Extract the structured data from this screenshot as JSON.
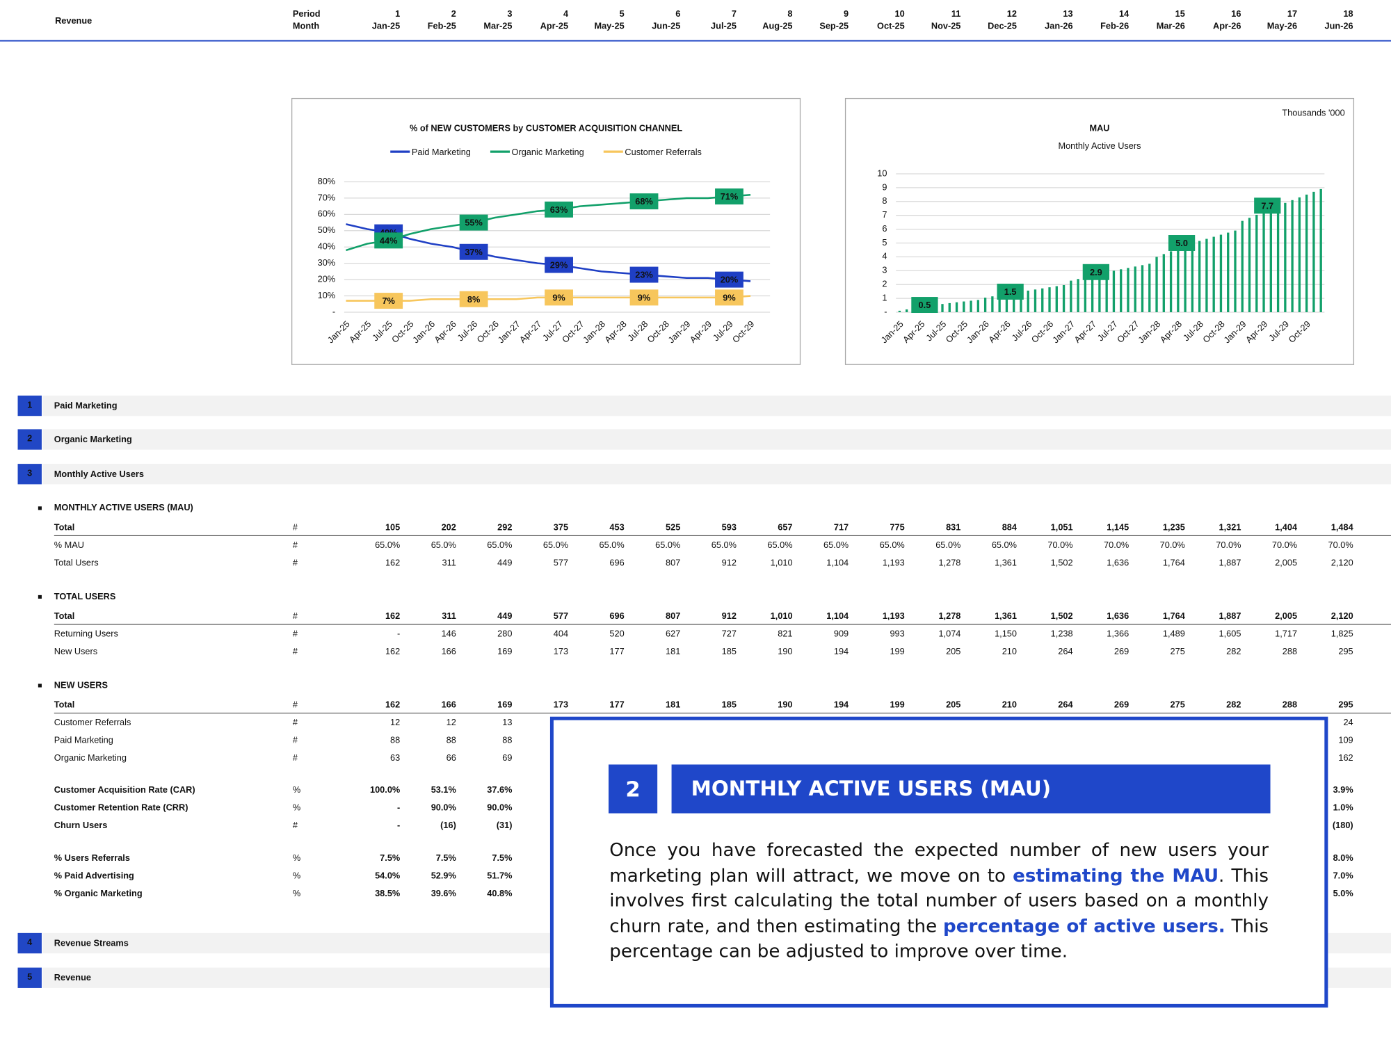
{
  "header": {
    "title": "Revenue",
    "period_label": "Period",
    "month_label": "Month",
    "periods": [
      "1",
      "2",
      "3",
      "4",
      "5",
      "6",
      "7",
      "8",
      "9",
      "10",
      "11",
      "12",
      "13",
      "14",
      "15",
      "16",
      "17",
      "18"
    ],
    "months": [
      "Jan-25",
      "Feb-25",
      "Mar-25",
      "Apr-25",
      "May-25",
      "Jun-25",
      "Jul-25",
      "Aug-25",
      "Sep-25",
      "Oct-25",
      "Nov-25",
      "Dec-25",
      "Jan-26",
      "Feb-26",
      "Mar-26",
      "Apr-26",
      "May-26",
      "Jun-26"
    ]
  },
  "chart_data": [
    {
      "type": "line",
      "title": "% of NEW CUSTOMERS by CUSTOMER ACQUISITION CHANNEL",
      "categories": [
        "Jan-25",
        "Apr-25",
        "Jul-25",
        "Oct-25",
        "Jan-26",
        "Apr-26",
        "Jul-26",
        "Oct-26",
        "Jan-27",
        "Apr-27",
        "Jul-27",
        "Oct-27",
        "Jan-28",
        "Apr-28",
        "Jul-28",
        "Oct-28",
        "Jan-29",
        "Apr-29",
        "Jul-29",
        "Oct-29"
      ],
      "series": [
        {
          "name": "Paid Marketing",
          "color": "#1f3fc4",
          "values": [
            54,
            51,
            49,
            45,
            42,
            40,
            37,
            34,
            32,
            30,
            29,
            27,
            25,
            24,
            23,
            22,
            21,
            21,
            20,
            19
          ],
          "value_labels": [
            null,
            null,
            "49%",
            null,
            null,
            null,
            "37%",
            null,
            null,
            null,
            "29%",
            null,
            null,
            null,
            "23%",
            null,
            null,
            null,
            "20%",
            null
          ]
        },
        {
          "name": "Organic Marketing",
          "color": "#12a06a",
          "values": [
            38,
            42,
            44,
            48,
            51,
            53,
            55,
            58,
            60,
            62,
            63,
            65,
            66,
            67,
            68,
            69,
            70,
            70,
            71,
            72
          ],
          "value_labels": [
            null,
            null,
            "44%",
            null,
            null,
            null,
            "55%",
            null,
            null,
            null,
            "63%",
            null,
            null,
            null,
            "68%",
            null,
            null,
            null,
            "71%",
            null
          ]
        },
        {
          "name": "Customer Referrals",
          "color": "#f7c65c",
          "values": [
            7,
            7,
            7,
            7,
            8,
            8,
            8,
            8,
            8,
            9,
            9,
            9,
            9,
            9,
            9,
            9,
            9,
            9,
            9,
            10
          ],
          "value_labels": [
            null,
            null,
            "7%",
            null,
            null,
            null,
            "8%",
            null,
            null,
            null,
            "9%",
            null,
            null,
            null,
            "9%",
            null,
            null,
            null,
            "9%",
            null
          ]
        }
      ],
      "ylim": [
        0,
        80
      ],
      "yticks": [
        {
          "value": 0,
          "label": "-"
        },
        {
          "value": 10,
          "label": "10%"
        },
        {
          "value": 20,
          "label": "20%"
        },
        {
          "value": 30,
          "label": "30%"
        },
        {
          "value": 40,
          "label": "40%"
        },
        {
          "value": 50,
          "label": "50%"
        },
        {
          "value": 60,
          "label": "60%"
        },
        {
          "value": 70,
          "label": "70%"
        },
        {
          "value": 80,
          "label": "80%"
        }
      ],
      "grid": true,
      "legend": "top"
    },
    {
      "type": "bar",
      "title": "MAU",
      "subtitle": "Monthly Active Users",
      "note": "Thousands '000",
      "categories": [
        "Jan-25",
        null,
        null,
        "Apr-25",
        null,
        null,
        "Jul-25",
        null,
        null,
        "Oct-25",
        null,
        null,
        "Jan-26",
        null,
        null,
        "Apr-26",
        null,
        null,
        "Jul-26",
        null,
        null,
        "Oct-26",
        null,
        null,
        "Jan-27",
        null,
        null,
        "Apr-27",
        null,
        null,
        "Jul-27",
        null,
        null,
        "Oct-27",
        null,
        null,
        "Jan-28",
        null,
        null,
        "Apr-28",
        null,
        null,
        "Jul-28",
        null,
        null,
        "Oct-28",
        null,
        null,
        "Jan-29",
        null,
        null,
        "Apr-29",
        null,
        null,
        "Jul-29",
        null,
        null,
        "Oct-29",
        null,
        null
      ],
      "values": [
        0.105,
        0.202,
        0.292,
        0.375,
        0.453,
        0.525,
        0.593,
        0.657,
        0.717,
        0.775,
        0.831,
        0.884,
        1.051,
        1.145,
        1.235,
        1.321,
        1.404,
        1.484,
        1.56,
        1.64,
        1.72,
        1.8,
        1.88,
        1.96,
        2.28,
        2.4,
        2.52,
        2.64,
        2.76,
        2.9,
        3.0,
        3.1,
        3.2,
        3.3,
        3.4,
        3.5,
        4.0,
        4.2,
        4.4,
        4.6,
        4.8,
        5.0,
        5.15,
        5.3,
        5.45,
        5.6,
        5.75,
        5.9,
        6.6,
        6.82,
        7.04,
        7.26,
        7.48,
        7.7,
        7.9,
        8.1,
        8.3,
        8.5,
        8.7,
        8.9
      ],
      "value_labels": [
        null,
        null,
        null,
        null,
        null,
        "0.5",
        null,
        null,
        null,
        null,
        null,
        null,
        null,
        null,
        null,
        null,
        null,
        "1.5",
        null,
        null,
        null,
        null,
        null,
        null,
        null,
        null,
        null,
        null,
        null,
        "2.9",
        null,
        null,
        null,
        null,
        null,
        null,
        null,
        null,
        null,
        null,
        null,
        "5.0",
        null,
        null,
        null,
        null,
        null,
        null,
        null,
        null,
        null,
        null,
        null,
        "7.7",
        null,
        null,
        null,
        null,
        null,
        null
      ],
      "color": "#12a06a",
      "ylim": [
        0,
        10
      ],
      "yticks": [
        {
          "value": 0,
          "label": "-"
        },
        1,
        2,
        3,
        4,
        5,
        6,
        7,
        8,
        9,
        10
      ],
      "grid": true
    }
  ],
  "sections": [
    {
      "number": "1",
      "label": "Paid Marketing"
    },
    {
      "number": "2",
      "label": "Organic Marketing"
    },
    {
      "number": "3",
      "label": "Monthly Active Users"
    },
    {
      "number": "4",
      "label": "Revenue Streams"
    },
    {
      "number": "5",
      "label": "Revenue"
    }
  ],
  "blocks": [
    {
      "title": "MONTHLY ACTIVE USERS (MAU)",
      "rows": [
        {
          "label": "Total",
          "unit": "#",
          "values": [
            "105",
            "202",
            "292",
            "375",
            "453",
            "525",
            "593",
            "657",
            "717",
            "775",
            "831",
            "884",
            "1,051",
            "1,145",
            "1,235",
            "1,321",
            "1,404",
            "1,484"
          ]
        },
        {
          "label": "% MAU",
          "unit": "#",
          "values": [
            "65.0%",
            "65.0%",
            "65.0%",
            "65.0%",
            "65.0%",
            "65.0%",
            "65.0%",
            "65.0%",
            "65.0%",
            "65.0%",
            "65.0%",
            "65.0%",
            "70.0%",
            "70.0%",
            "70.0%",
            "70.0%",
            "70.0%",
            "70.0%"
          ]
        },
        {
          "label": "Total Users",
          "unit": "#",
          "values": [
            "162",
            "311",
            "449",
            "577",
            "696",
            "807",
            "912",
            "1,010",
            "1,104",
            "1,193",
            "1,278",
            "1,361",
            "1,502",
            "1,636",
            "1,764",
            "1,887",
            "2,005",
            "2,120"
          ]
        }
      ]
    },
    {
      "title": "TOTAL USERS",
      "rows": [
        {
          "label": "Total",
          "unit": "#",
          "values": [
            "162",
            "311",
            "449",
            "577",
            "696",
            "807",
            "912",
            "1,010",
            "1,104",
            "1,193",
            "1,278",
            "1,361",
            "1,502",
            "1,636",
            "1,764",
            "1,887",
            "2,005",
            "2,120"
          ]
        },
        {
          "label": "Returning Users",
          "unit": "#",
          "values": [
            "-",
            "146",
            "280",
            "404",
            "520",
            "627",
            "727",
            "821",
            "909",
            "993",
            "1,074",
            "1,150",
            "1,238",
            "1,366",
            "1,489",
            "1,605",
            "1,717",
            "1,825"
          ]
        },
        {
          "label": "New Users",
          "unit": "#",
          "values": [
            "162",
            "166",
            "169",
            "173",
            "177",
            "181",
            "185",
            "190",
            "194",
            "199",
            "205",
            "210",
            "264",
            "269",
            "275",
            "282",
            "288",
            "295"
          ]
        }
      ]
    },
    {
      "title": "NEW USERS",
      "rows": [
        {
          "label": "Total",
          "unit": "#",
          "values": [
            "162",
            "166",
            "169",
            "173",
            "177",
            "181",
            "185",
            "190",
            "194",
            "199",
            "205",
            "210",
            "264",
            "269",
            "275",
            "282",
            "288",
            "295"
          ]
        },
        {
          "label": "Customer Referrals",
          "unit": "#",
          "values": [
            "12",
            "12",
            "13",
            null,
            null,
            null,
            null,
            null,
            null,
            null,
            null,
            null,
            null,
            null,
            null,
            null,
            null,
            "24"
          ]
        },
        {
          "label": "Paid Marketing",
          "unit": "#",
          "values": [
            "88",
            "88",
            "88",
            null,
            null,
            null,
            null,
            null,
            null,
            null,
            null,
            null,
            null,
            null,
            null,
            null,
            null,
            "109"
          ]
        },
        {
          "label": "Organic Marketing",
          "unit": "#",
          "values": [
            "63",
            "66",
            "69",
            null,
            null,
            null,
            null,
            null,
            null,
            null,
            null,
            null,
            null,
            null,
            null,
            null,
            null,
            "162"
          ]
        }
      ]
    },
    {
      "rows": [
        {
          "label": "Customer Acquisition Rate (CAR)",
          "unit": "%",
          "values": [
            "100.0%",
            "53.1%",
            "37.6%",
            null,
            null,
            null,
            null,
            null,
            null,
            null,
            null,
            null,
            null,
            null,
            null,
            null,
            null,
            "3.9%"
          ]
        },
        {
          "label": "Customer Retention Rate (CRR)",
          "unit": "%",
          "values": [
            "-",
            "90.0%",
            "90.0%",
            null,
            null,
            null,
            null,
            null,
            null,
            null,
            null,
            null,
            null,
            null,
            null,
            null,
            null,
            "1.0%"
          ]
        },
        {
          "label": "Churn Users",
          "unit": "#",
          "values": [
            "-",
            "(16)",
            "(31)",
            null,
            null,
            null,
            null,
            null,
            null,
            null,
            null,
            null,
            null,
            null,
            null,
            null,
            null,
            "(180)"
          ]
        }
      ]
    },
    {
      "rows": [
        {
          "label": "% Users Referrals",
          "unit": "%",
          "values": [
            "7.5%",
            "7.5%",
            "7.5%",
            null,
            null,
            null,
            null,
            null,
            null,
            null,
            null,
            null,
            null,
            null,
            null,
            null,
            null,
            "8.0%"
          ]
        },
        {
          "label": "% Paid Advertising",
          "unit": "%",
          "values": [
            "54.0%",
            "52.9%",
            "51.7%",
            null,
            null,
            null,
            null,
            null,
            null,
            null,
            null,
            null,
            null,
            null,
            null,
            null,
            null,
            "7.0%"
          ]
        },
        {
          "label": "% Organic Marketing",
          "unit": "%",
          "values": [
            "38.5%",
            "39.6%",
            "40.8%",
            null,
            null,
            null,
            null,
            null,
            null,
            null,
            null,
            null,
            null,
            null,
            null,
            null,
            null,
            "5.0%"
          ]
        }
      ]
    }
  ],
  "callout": {
    "number": "2",
    "heading": "MONTHLY ACTIVE USERS (MAU)",
    "parts": [
      "Once you have forecasted the expected number of new users your marketing plan will attract, we move on to ",
      "estimating the MAU",
      ". This involves first calculating the total number of users based on a monthly churn rate, and then estimating the ",
      "percentage of active users.",
      " This percentage can be adjusted to improve over time."
    ]
  }
}
